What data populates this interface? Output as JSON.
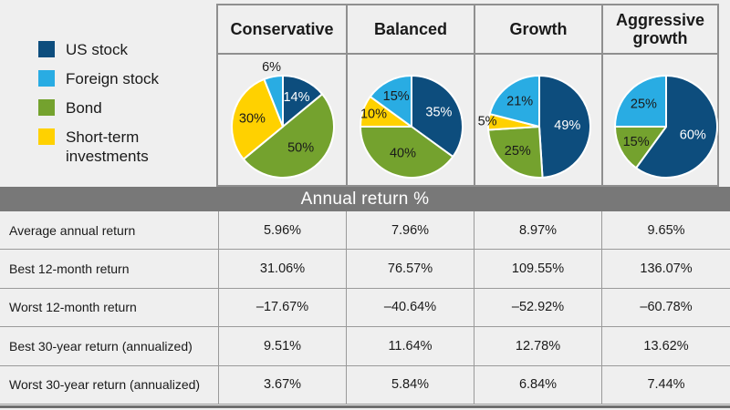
{
  "page": {
    "background": "#efefef"
  },
  "legend": {
    "items": [
      {
        "label": "US stock",
        "color": "#0d4d7d"
      },
      {
        "label": "Foreign stock",
        "color": "#29ace3"
      },
      {
        "label": "Bond",
        "color": "#74a22e"
      },
      {
        "label": "Short-term investments",
        "color": "#ffd100"
      }
    ]
  },
  "columns": [
    {
      "label": "Conservative"
    },
    {
      "label": "Balanced"
    },
    {
      "label": "Growth"
    },
    {
      "label": "Aggressive growth"
    }
  ],
  "chart_data": {
    "type": "pie",
    "unit": "% of portfolio",
    "legend_entries": [
      "US stock",
      "Foreign stock",
      "Bond",
      "Short-term investments"
    ],
    "legend_position": "left",
    "charts": [
      {
        "title": "Conservative",
        "slices": [
          {
            "segment": "US stock",
            "value": 14,
            "label": "14%",
            "color": "#0d4d7d",
            "label_color": "#ffffff",
            "label_r": 0.63
          },
          {
            "segment": "Bond",
            "value": 50,
            "label": "50%",
            "color": "#74a22e",
            "label_color": "#1a1a1a",
            "label_r": 0.55
          },
          {
            "segment": "Short-term investments",
            "value": 30,
            "label": "30%",
            "color": "#ffd100",
            "label_color": "#1a1a1a",
            "label_r": 0.62
          },
          {
            "segment": "Foreign stock",
            "value": 6,
            "label": "6%",
            "color": "#29ace3",
            "label_color": "#1a1a1a",
            "label_r": 1.18
          }
        ]
      },
      {
        "title": "Balanced",
        "slices": [
          {
            "segment": "US stock",
            "value": 35,
            "label": "35%",
            "color": "#0d4d7d",
            "label_color": "#ffffff",
            "label_r": 0.6
          },
          {
            "segment": "Bond",
            "value": 40,
            "label": "40%",
            "color": "#74a22e",
            "label_color": "#1a1a1a",
            "label_r": 0.55
          },
          {
            "segment": "Short-term investments",
            "value": 10,
            "label": "10%",
            "color": "#ffd100",
            "label_color": "#1a1a1a",
            "label_r": 0.78
          },
          {
            "segment": "Foreign stock",
            "value": 15,
            "label": "15%",
            "color": "#29ace3",
            "label_color": "#1a1a1a",
            "label_r": 0.66
          }
        ]
      },
      {
        "title": "Growth",
        "slices": [
          {
            "segment": "US stock",
            "value": 49,
            "label": "49%",
            "color": "#0d4d7d",
            "label_color": "#ffffff",
            "label_r": 0.55
          },
          {
            "segment": "Bond",
            "value": 25,
            "label": "25%",
            "color": "#74a22e",
            "label_color": "#1a1a1a",
            "label_r": 0.64
          },
          {
            "segment": "Short-term investments",
            "value": 5,
            "label": "5%",
            "color": "#ffd100",
            "label_color": "#1a1a1a",
            "label_r": 1.02
          },
          {
            "segment": "Foreign stock",
            "value": 21,
            "label": "21%",
            "color": "#29ace3",
            "label_color": "#1a1a1a",
            "label_r": 0.62
          }
        ]
      },
      {
        "title": "Aggressive growth",
        "slices": [
          {
            "segment": "US stock",
            "value": 60,
            "label": "60%",
            "color": "#0d4d7d",
            "label_color": "#ffffff",
            "label_r": 0.55
          },
          {
            "segment": "Bond",
            "value": 15,
            "label": "15%",
            "color": "#74a22e",
            "label_color": "#1a1a1a",
            "label_r": 0.66
          },
          {
            "segment": "Foreign stock",
            "value": 25,
            "label": "25%",
            "color": "#29ace3",
            "label_color": "#1a1a1a",
            "label_r": 0.62
          }
        ]
      }
    ]
  },
  "table": {
    "section_header": "Annual return %",
    "rows": [
      {
        "label": "Average annual return",
        "values": [
          "5.96%",
          "7.96%",
          "8.97%",
          "9.65%"
        ]
      },
      {
        "label": "Best 12-month return",
        "values": [
          "31.06%",
          "76.57%",
          "109.55%",
          "136.07%"
        ]
      },
      {
        "label": "Worst 12-month return",
        "values": [
          "–17.67%",
          "–40.64%",
          "–52.92%",
          "–60.78%"
        ]
      },
      {
        "label": "Best 30-year return (annualized)",
        "values": [
          "9.51%",
          "11.64%",
          "12.78%",
          "13.62%"
        ]
      },
      {
        "label": "Worst 30-year return (annualized)",
        "values": [
          "3.67%",
          "5.84%",
          "6.84%",
          "7.44%"
        ]
      }
    ]
  }
}
